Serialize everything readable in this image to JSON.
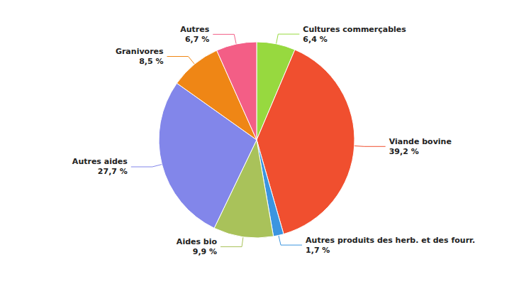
{
  "chart_data": {
    "type": "pie",
    "categories": [
      "Cultures commerçables",
      "Viande bovine",
      "Autres produits des herb. et des fourr.",
      "Aides bio",
      "Autres aides",
      "Granivores",
      "Autres"
    ],
    "values": [
      6.4,
      39.2,
      1.7,
      9.9,
      27.7,
      8.5,
      6.7
    ],
    "value_labels": [
      "6,4 %",
      "39,2 %",
      "1,7 %",
      "9,9 %",
      "27,7 %",
      "8,5 %",
      "6,7 %"
    ],
    "colors": [
      "#97d93f",
      "#f04f2f",
      "#3b95e0",
      "#a9c25a",
      "#8286ea",
      "#ef8615",
      "#f35e86"
    ],
    "data_labels": true
  }
}
